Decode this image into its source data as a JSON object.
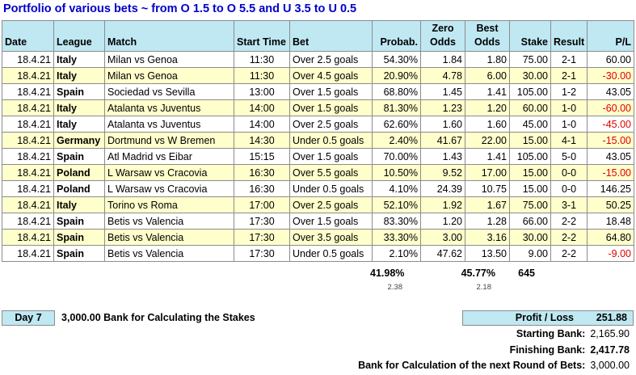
{
  "title": "Portfolio of various bets ~ from O 1.5 to O 5.5 and U 3.5 to U 0.5",
  "headers": {
    "date": "Date",
    "league": "League",
    "match": "Match",
    "start": "Start Time",
    "bet": "Bet",
    "prob": "Probab.",
    "zero1": "Zero",
    "zero2": "Odds",
    "best1": "Best",
    "best2": "Odds",
    "stake": "Stake",
    "result": "Result",
    "pl": "P/L"
  },
  "rows": [
    {
      "date": "18.4.21",
      "league": "Italy",
      "match": "Milan vs Genoa",
      "start": "11:30",
      "bet": "Over 2.5 goals",
      "prob": "54.30%",
      "zero": "1.84",
      "best": "1.80",
      "stake": "75.00",
      "result": "2-1",
      "pl": "60.00",
      "neg": false
    },
    {
      "date": "18.4.21",
      "league": "Italy",
      "match": "Milan vs Genoa",
      "start": "11:30",
      "bet": "Over 4.5 goals",
      "prob": "20.90%",
      "zero": "4.78",
      "best": "6.00",
      "stake": "30.00",
      "result": "2-1",
      "pl": "-30.00",
      "neg": true
    },
    {
      "date": "18.4.21",
      "league": "Spain",
      "match": "Sociedad vs Sevilla",
      "start": "13:00",
      "bet": "Over 1.5 goals",
      "prob": "68.80%",
      "zero": "1.45",
      "best": "1.41",
      "stake": "105.00",
      "result": "1-2",
      "pl": "43.05",
      "neg": false
    },
    {
      "date": "18.4.21",
      "league": "Italy",
      "match": "Atalanta vs Juventus",
      "start": "14:00",
      "bet": "Over 1.5 goals",
      "prob": "81.30%",
      "zero": "1.23",
      "best": "1.20",
      "stake": "60.00",
      "result": "1-0",
      "pl": "-60.00",
      "neg": true
    },
    {
      "date": "18.4.21",
      "league": "Italy",
      "match": "Atalanta vs Juventus",
      "start": "14:00",
      "bet": "Over 2.5 goals",
      "prob": "62.60%",
      "zero": "1.60",
      "best": "1.60",
      "stake": "45.00",
      "result": "1-0",
      "pl": "-45.00",
      "neg": true
    },
    {
      "date": "18.4.21",
      "league": "Germany",
      "match": "Dortmund vs W Bremen",
      "start": "14:30",
      "bet": "Under 0.5 goals",
      "prob": "2.40%",
      "zero": "41.67",
      "best": "22.00",
      "stake": "15.00",
      "result": "4-1",
      "pl": "-15.00",
      "neg": true
    },
    {
      "date": "18.4.21",
      "league": "Spain",
      "match": "Atl Madrid vs Eibar",
      "start": "15:15",
      "bet": "Over 1.5 goals",
      "prob": "70.00%",
      "zero": "1.43",
      "best": "1.41",
      "stake": "105.00",
      "result": "5-0",
      "pl": "43.05",
      "neg": false
    },
    {
      "date": "18.4.21",
      "league": "Poland",
      "match": "L Warsaw vs Cracovia",
      "start": "16:30",
      "bet": "Over 5.5 goals",
      "prob": "10.50%",
      "zero": "9.52",
      "best": "17.00",
      "stake": "15.00",
      "result": "0-0",
      "pl": "-15.00",
      "neg": true
    },
    {
      "date": "18.4.21",
      "league": "Poland",
      "match": "L Warsaw vs Cracovia",
      "start": "16:30",
      "bet": "Under 0.5 goals",
      "prob": "4.10%",
      "zero": "24.39",
      "best": "10.75",
      "stake": "15.00",
      "result": "0-0",
      "pl": "146.25",
      "neg": false
    },
    {
      "date": "18.4.21",
      "league": "Italy",
      "match": "Torino vs Roma",
      "start": "17:00",
      "bet": "Over 2.5 goals",
      "prob": "52.10%",
      "zero": "1.92",
      "best": "1.67",
      "stake": "75.00",
      "result": "3-1",
      "pl": "50.25",
      "neg": false
    },
    {
      "date": "18.4.21",
      "league": "Spain",
      "match": "Betis vs Valencia",
      "start": "17:30",
      "bet": "Over 1.5 goals",
      "prob": "83.30%",
      "zero": "1.20",
      "best": "1.28",
      "stake": "66.00",
      "result": "2-2",
      "pl": "18.48",
      "neg": false
    },
    {
      "date": "18.4.21",
      "league": "Spain",
      "match": "Betis vs Valencia",
      "start": "17:30",
      "bet": "Over 3.5 goals",
      "prob": "33.30%",
      "zero": "3.00",
      "best": "3.16",
      "stake": "30.00",
      "result": "2-2",
      "pl": "64.80",
      "neg": false
    },
    {
      "date": "18.4.21",
      "league": "Spain",
      "match": "Betis vs Valencia",
      "start": "17:30",
      "bet": "Under 0.5 goals",
      "prob": "2.10%",
      "zero": "47.62",
      "best": "13.50",
      "stake": "9.00",
      "result": "2-2",
      "pl": "-9.00",
      "neg": true
    }
  ],
  "summary": {
    "prob_total": "41.98%",
    "prob_sub": "2.38",
    "best_total": "45.77%",
    "best_sub": "2.18",
    "stake_total": "645"
  },
  "footer": {
    "day": "Day 7",
    "bank_amount": "3,000.00",
    "bank_label": "Bank for Calculating the Stakes",
    "pl_label": "Profit / Loss",
    "pl_value": "251.88",
    "starting_label": "Starting Bank:",
    "starting_value": "2,165.90",
    "finishing_label": "Finishing Bank:",
    "finishing_value": "2,417.78",
    "next_label": "Bank for Calculation of the next Round of Bets:",
    "next_value": "3,000.00"
  },
  "colors": {
    "header_bg": "#bfe8f2",
    "alt_row_bg": "#ffffcc",
    "title": "#0000cc",
    "negative": "#e00000"
  }
}
